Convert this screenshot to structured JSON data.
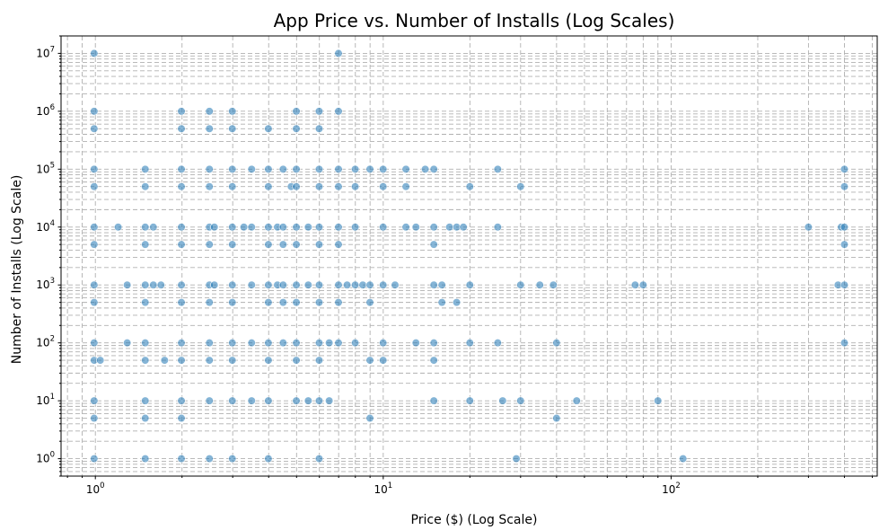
{
  "chart_data": {
    "type": "scatter",
    "title": "App Price vs. Number of Installs (Log Scales)",
    "xlabel": "Price ($) (Log Scale)",
    "ylabel": "Number of Installs (Log Scale)",
    "x_scale": "log",
    "y_scale": "log",
    "xlim": [
      0.76,
      520
    ],
    "ylim": [
      0.5,
      20000000
    ],
    "grid": "both-major-and-minor",
    "marker_color": "#1f77b4",
    "x_ticks": [
      {
        "value": 1,
        "base": "10",
        "exp": "0"
      },
      {
        "value": 10,
        "base": "10",
        "exp": "1"
      },
      {
        "value": 100,
        "base": "10",
        "exp": "2"
      }
    ],
    "y_ticks": [
      {
        "value": 1,
        "base": "10",
        "exp": "0"
      },
      {
        "value": 10,
        "base": "10",
        "exp": "1"
      },
      {
        "value": 100,
        "base": "10",
        "exp": "2"
      },
      {
        "value": 1000,
        "base": "10",
        "exp": "3"
      },
      {
        "value": 10000,
        "base": "10",
        "exp": "4"
      },
      {
        "value": 100000,
        "base": "10",
        "exp": "5"
      },
      {
        "value": 1000000,
        "base": "10",
        "exp": "6"
      },
      {
        "value": 10000000,
        "base": "10",
        "exp": "7"
      }
    ],
    "points": [
      {
        "x": 0.99,
        "y": 10000000
      },
      {
        "x": 6.99,
        "y": 10000000
      },
      {
        "x": 0.99,
        "y": 1000000
      },
      {
        "x": 1.99,
        "y": 1000000
      },
      {
        "x": 2.49,
        "y": 1000000
      },
      {
        "x": 2.99,
        "y": 1000000
      },
      {
        "x": 4.99,
        "y": 1000000
      },
      {
        "x": 5.99,
        "y": 1000000
      },
      {
        "x": 6.99,
        "y": 1000000
      },
      {
        "x": 0.99,
        "y": 500000
      },
      {
        "x": 1.99,
        "y": 500000
      },
      {
        "x": 2.49,
        "y": 500000
      },
      {
        "x": 2.99,
        "y": 500000
      },
      {
        "x": 3.99,
        "y": 500000
      },
      {
        "x": 4.99,
        "y": 500000
      },
      {
        "x": 5.99,
        "y": 500000
      },
      {
        "x": 0.99,
        "y": 100000
      },
      {
        "x": 1.49,
        "y": 100000
      },
      {
        "x": 1.99,
        "y": 100000
      },
      {
        "x": 2.49,
        "y": 100000
      },
      {
        "x": 2.99,
        "y": 100000
      },
      {
        "x": 3.49,
        "y": 100000
      },
      {
        "x": 3.99,
        "y": 100000
      },
      {
        "x": 4.49,
        "y": 100000
      },
      {
        "x": 4.99,
        "y": 100000
      },
      {
        "x": 5.99,
        "y": 100000
      },
      {
        "x": 6.99,
        "y": 100000
      },
      {
        "x": 7.99,
        "y": 100000
      },
      {
        "x": 8.99,
        "y": 100000
      },
      {
        "x": 9.99,
        "y": 100000
      },
      {
        "x": 11.99,
        "y": 100000
      },
      {
        "x": 13.99,
        "y": 100000
      },
      {
        "x": 14.99,
        "y": 100000
      },
      {
        "x": 24.99,
        "y": 100000
      },
      {
        "x": 399.99,
        "y": 100000
      },
      {
        "x": 0.99,
        "y": 50000
      },
      {
        "x": 1.49,
        "y": 50000
      },
      {
        "x": 1.99,
        "y": 50000
      },
      {
        "x": 2.49,
        "y": 50000
      },
      {
        "x": 2.99,
        "y": 50000
      },
      {
        "x": 3.99,
        "y": 50000
      },
      {
        "x": 4.79,
        "y": 50000
      },
      {
        "x": 4.99,
        "y": 50000
      },
      {
        "x": 5.99,
        "y": 50000
      },
      {
        "x": 6.99,
        "y": 50000
      },
      {
        "x": 7.99,
        "y": 50000
      },
      {
        "x": 9.99,
        "y": 50000
      },
      {
        "x": 11.99,
        "y": 50000
      },
      {
        "x": 19.99,
        "y": 50000
      },
      {
        "x": 29.99,
        "y": 50000
      },
      {
        "x": 399.99,
        "y": 50000
      },
      {
        "x": 0.99,
        "y": 10000
      },
      {
        "x": 1.2,
        "y": 10000
      },
      {
        "x": 1.49,
        "y": 10000
      },
      {
        "x": 1.59,
        "y": 10000
      },
      {
        "x": 1.99,
        "y": 10000
      },
      {
        "x": 2.49,
        "y": 10000
      },
      {
        "x": 2.59,
        "y": 10000
      },
      {
        "x": 2.99,
        "y": 10000
      },
      {
        "x": 3.28,
        "y": 10000
      },
      {
        "x": 3.49,
        "y": 10000
      },
      {
        "x": 3.99,
        "y": 10000
      },
      {
        "x": 4.29,
        "y": 10000
      },
      {
        "x": 4.49,
        "y": 10000
      },
      {
        "x": 4.99,
        "y": 10000
      },
      {
        "x": 5.49,
        "y": 10000
      },
      {
        "x": 5.99,
        "y": 10000
      },
      {
        "x": 6.99,
        "y": 10000
      },
      {
        "x": 7.99,
        "y": 10000
      },
      {
        "x": 9.99,
        "y": 10000
      },
      {
        "x": 11.99,
        "y": 10000
      },
      {
        "x": 12.99,
        "y": 10000
      },
      {
        "x": 14.99,
        "y": 10000
      },
      {
        "x": 16.99,
        "y": 10000
      },
      {
        "x": 17.99,
        "y": 10000
      },
      {
        "x": 18.99,
        "y": 10000
      },
      {
        "x": 24.99,
        "y": 10000
      },
      {
        "x": 299.99,
        "y": 10000
      },
      {
        "x": 389.99,
        "y": 10000
      },
      {
        "x": 399.99,
        "y": 10000
      },
      {
        "x": 0.99,
        "y": 5000
      },
      {
        "x": 1.49,
        "y": 5000
      },
      {
        "x": 1.99,
        "y": 5000
      },
      {
        "x": 2.49,
        "y": 5000
      },
      {
        "x": 2.99,
        "y": 5000
      },
      {
        "x": 3.99,
        "y": 5000
      },
      {
        "x": 4.49,
        "y": 5000
      },
      {
        "x": 4.99,
        "y": 5000
      },
      {
        "x": 5.99,
        "y": 5000
      },
      {
        "x": 6.99,
        "y": 5000
      },
      {
        "x": 14.99,
        "y": 5000
      },
      {
        "x": 399.99,
        "y": 5000
      },
      {
        "x": 0.99,
        "y": 1000
      },
      {
        "x": 1.29,
        "y": 1000
      },
      {
        "x": 1.49,
        "y": 1000
      },
      {
        "x": 1.59,
        "y": 1000
      },
      {
        "x": 1.69,
        "y": 1000
      },
      {
        "x": 1.99,
        "y": 1000
      },
      {
        "x": 2.49,
        "y": 1000
      },
      {
        "x": 2.59,
        "y": 1000
      },
      {
        "x": 2.99,
        "y": 1000
      },
      {
        "x": 3.49,
        "y": 1000
      },
      {
        "x": 3.99,
        "y": 1000
      },
      {
        "x": 4.29,
        "y": 1000
      },
      {
        "x": 4.49,
        "y": 1000
      },
      {
        "x": 4.99,
        "y": 1000
      },
      {
        "x": 5.49,
        "y": 1000
      },
      {
        "x": 5.99,
        "y": 1000
      },
      {
        "x": 6.99,
        "y": 1000
      },
      {
        "x": 7.49,
        "y": 1000
      },
      {
        "x": 7.99,
        "y": 1000
      },
      {
        "x": 8.49,
        "y": 1000
      },
      {
        "x": 8.99,
        "y": 1000
      },
      {
        "x": 9.99,
        "y": 1000
      },
      {
        "x": 10.99,
        "y": 1000
      },
      {
        "x": 14.99,
        "y": 1000
      },
      {
        "x": 15.99,
        "y": 1000
      },
      {
        "x": 19.99,
        "y": 1000
      },
      {
        "x": 29.99,
        "y": 1000
      },
      {
        "x": 34.99,
        "y": 1000
      },
      {
        "x": 38.99,
        "y": 1000
      },
      {
        "x": 74.99,
        "y": 1000
      },
      {
        "x": 79.99,
        "y": 1000
      },
      {
        "x": 379.99,
        "y": 1000
      },
      {
        "x": 399.99,
        "y": 1000
      },
      {
        "x": 0.99,
        "y": 500
      },
      {
        "x": 1.49,
        "y": 500
      },
      {
        "x": 1.99,
        "y": 500
      },
      {
        "x": 2.49,
        "y": 500
      },
      {
        "x": 2.99,
        "y": 500
      },
      {
        "x": 3.99,
        "y": 500
      },
      {
        "x": 4.49,
        "y": 500
      },
      {
        "x": 4.99,
        "y": 500
      },
      {
        "x": 5.99,
        "y": 500
      },
      {
        "x": 6.99,
        "y": 500
      },
      {
        "x": 8.99,
        "y": 500
      },
      {
        "x": 15.99,
        "y": 500
      },
      {
        "x": 17.99,
        "y": 500
      },
      {
        "x": 0.99,
        "y": 100
      },
      {
        "x": 1.29,
        "y": 100
      },
      {
        "x": 1.49,
        "y": 100
      },
      {
        "x": 1.99,
        "y": 100
      },
      {
        "x": 2.49,
        "y": 100
      },
      {
        "x": 2.99,
        "y": 100
      },
      {
        "x": 3.49,
        "y": 100
      },
      {
        "x": 3.99,
        "y": 100
      },
      {
        "x": 4.49,
        "y": 100
      },
      {
        "x": 4.99,
        "y": 100
      },
      {
        "x": 5.99,
        "y": 100
      },
      {
        "x": 6.49,
        "y": 100
      },
      {
        "x": 6.99,
        "y": 100
      },
      {
        "x": 7.99,
        "y": 100
      },
      {
        "x": 9.99,
        "y": 100
      },
      {
        "x": 12.99,
        "y": 100
      },
      {
        "x": 14.99,
        "y": 100
      },
      {
        "x": 19.99,
        "y": 100
      },
      {
        "x": 24.99,
        "y": 100
      },
      {
        "x": 39.99,
        "y": 100
      },
      {
        "x": 399.99,
        "y": 100
      },
      {
        "x": 0.99,
        "y": 50
      },
      {
        "x": 1.04,
        "y": 50
      },
      {
        "x": 1.49,
        "y": 50
      },
      {
        "x": 1.74,
        "y": 50
      },
      {
        "x": 1.99,
        "y": 50
      },
      {
        "x": 2.49,
        "y": 50
      },
      {
        "x": 2.99,
        "y": 50
      },
      {
        "x": 3.99,
        "y": 50
      },
      {
        "x": 4.99,
        "y": 50
      },
      {
        "x": 5.99,
        "y": 50
      },
      {
        "x": 8.99,
        "y": 50
      },
      {
        "x": 9.99,
        "y": 50
      },
      {
        "x": 14.99,
        "y": 50
      },
      {
        "x": 0.99,
        "y": 10
      },
      {
        "x": 1.49,
        "y": 10
      },
      {
        "x": 1.99,
        "y": 10
      },
      {
        "x": 2.49,
        "y": 10
      },
      {
        "x": 2.99,
        "y": 10
      },
      {
        "x": 3.49,
        "y": 10
      },
      {
        "x": 3.99,
        "y": 10
      },
      {
        "x": 4.99,
        "y": 10
      },
      {
        "x": 5.49,
        "y": 10
      },
      {
        "x": 5.99,
        "y": 10
      },
      {
        "x": 6.49,
        "y": 10
      },
      {
        "x": 14.99,
        "y": 10
      },
      {
        "x": 19.99,
        "y": 10
      },
      {
        "x": 25.99,
        "y": 10
      },
      {
        "x": 29.99,
        "y": 10
      },
      {
        "x": 46.99,
        "y": 10
      },
      {
        "x": 89.99,
        "y": 10
      },
      {
        "x": 0.99,
        "y": 5
      },
      {
        "x": 1.49,
        "y": 5
      },
      {
        "x": 1.99,
        "y": 5
      },
      {
        "x": 8.99,
        "y": 5
      },
      {
        "x": 39.99,
        "y": 5
      },
      {
        "x": 0.99,
        "y": 1
      },
      {
        "x": 1.49,
        "y": 1
      },
      {
        "x": 1.99,
        "y": 1
      },
      {
        "x": 2.49,
        "y": 1
      },
      {
        "x": 2.99,
        "y": 1
      },
      {
        "x": 3.99,
        "y": 1
      },
      {
        "x": 5.99,
        "y": 1
      },
      {
        "x": 28.99,
        "y": 1
      },
      {
        "x": 109.99,
        "y": 1
      }
    ]
  }
}
